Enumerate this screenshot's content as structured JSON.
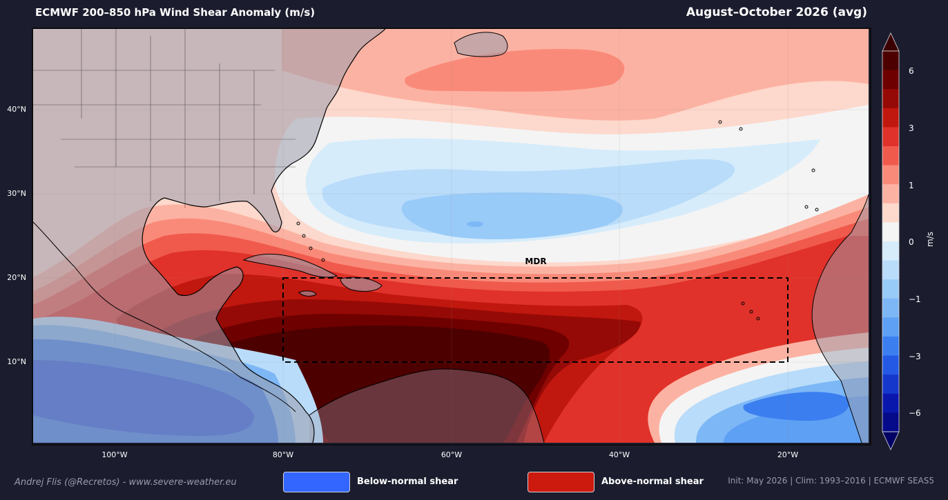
{
  "header": {
    "title": "ECMWF 200–850 hPa Wind Shear Anomaly  (m/s)",
    "period": "August–October 2026  (avg)"
  },
  "map": {
    "lat_labels": [
      "40°N",
      "30°N",
      "20°N",
      "10°N"
    ],
    "lon_labels": [
      "100°W",
      "80°W",
      "60°W",
      "40°W",
      "20°W"
    ],
    "region_box_label": "MDR",
    "land_shading": "gray",
    "border_color": "#000000"
  },
  "colorbar": {
    "unit": "m/s",
    "ticks": [
      "6",
      "3",
      "1",
      "0",
      "−1",
      "−3",
      "−6"
    ],
    "colors_top_to_bottom": [
      "#4d0000",
      "#6e0000",
      "#950a06",
      "#c0170e",
      "#e0322a",
      "#f05a4d",
      "#f98a79",
      "#fcb2a2",
      "#fdd8cc",
      "#f4f4f4",
      "#d6ecfb",
      "#b9dcfa",
      "#99cbf8",
      "#7db7f6",
      "#5ea0f4",
      "#3b7ef0",
      "#2459e6",
      "#1637cc",
      "#0a17ad",
      "#050a8a"
    ],
    "extend_top_color": "#3a0000",
    "extend_bottom_color": "#020266"
  },
  "legend": {
    "below_label": "Below-normal shear",
    "below_color": "#3366ff",
    "above_label": "Above-normal shear",
    "above_color": "#cc1a0f"
  },
  "footer": {
    "credit": "Andrej Flis (@Recretos) - www.severe-weather.eu",
    "info": "Init: May 2026  |  Clim: 1993–2016  |  ECMWF SEAS5"
  }
}
